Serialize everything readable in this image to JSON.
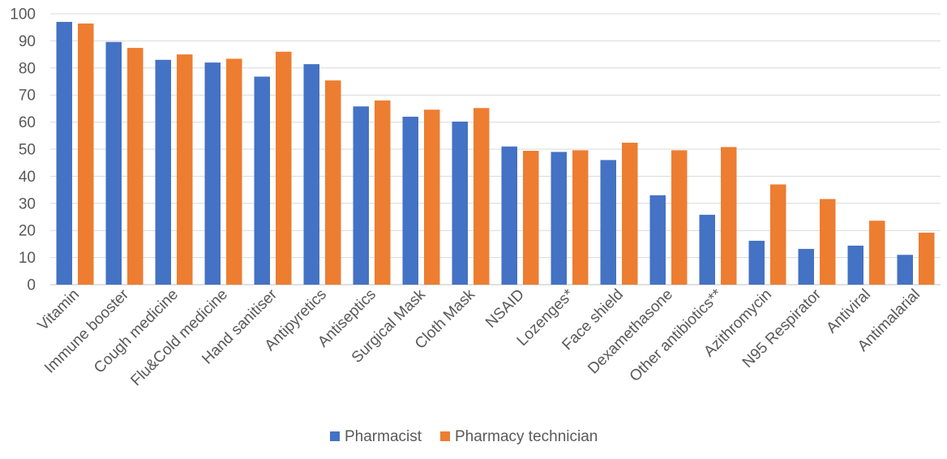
{
  "chart_data": {
    "type": "bar",
    "title": "",
    "xlabel": "",
    "ylabel": "",
    "ylim": [
      0,
      100
    ],
    "yticks": [
      0,
      10,
      20,
      30,
      40,
      50,
      60,
      70,
      80,
      90,
      100
    ],
    "grid": true,
    "legend_position": "bottom",
    "categories": [
      "Vitamin",
      "Immune booster",
      "Cough medicine",
      "Flu&Cold medicine",
      "Hand sanitiser",
      "Antipyretics",
      "Antiseptics",
      "Surgical Mask",
      "Cloth Mask",
      "NSAID",
      "Lozenges*",
      "Face shield",
      "Dexamethasone",
      "Other antibiotics**",
      "Azithromycin",
      "N95 Respirator",
      "Antiviral",
      "Antimalarial"
    ],
    "series": [
      {
        "name": "Pharmacist",
        "color": "#4472c4",
        "values": [
          97,
          89.6,
          83,
          82,
          76.8,
          81.4,
          65.8,
          62,
          60.2,
          51,
          49,
          46,
          33,
          25.8,
          16.2,
          13.2,
          14.4,
          11
        ]
      },
      {
        "name": "Pharmacy technician",
        "color": "#ed7d31",
        "values": [
          96.4,
          87.4,
          85,
          83.4,
          86,
          75.4,
          68,
          64.6,
          65.2,
          49.4,
          49.6,
          52.4,
          49.6,
          50.8,
          37,
          31.6,
          23.6,
          19.2
        ]
      }
    ]
  }
}
